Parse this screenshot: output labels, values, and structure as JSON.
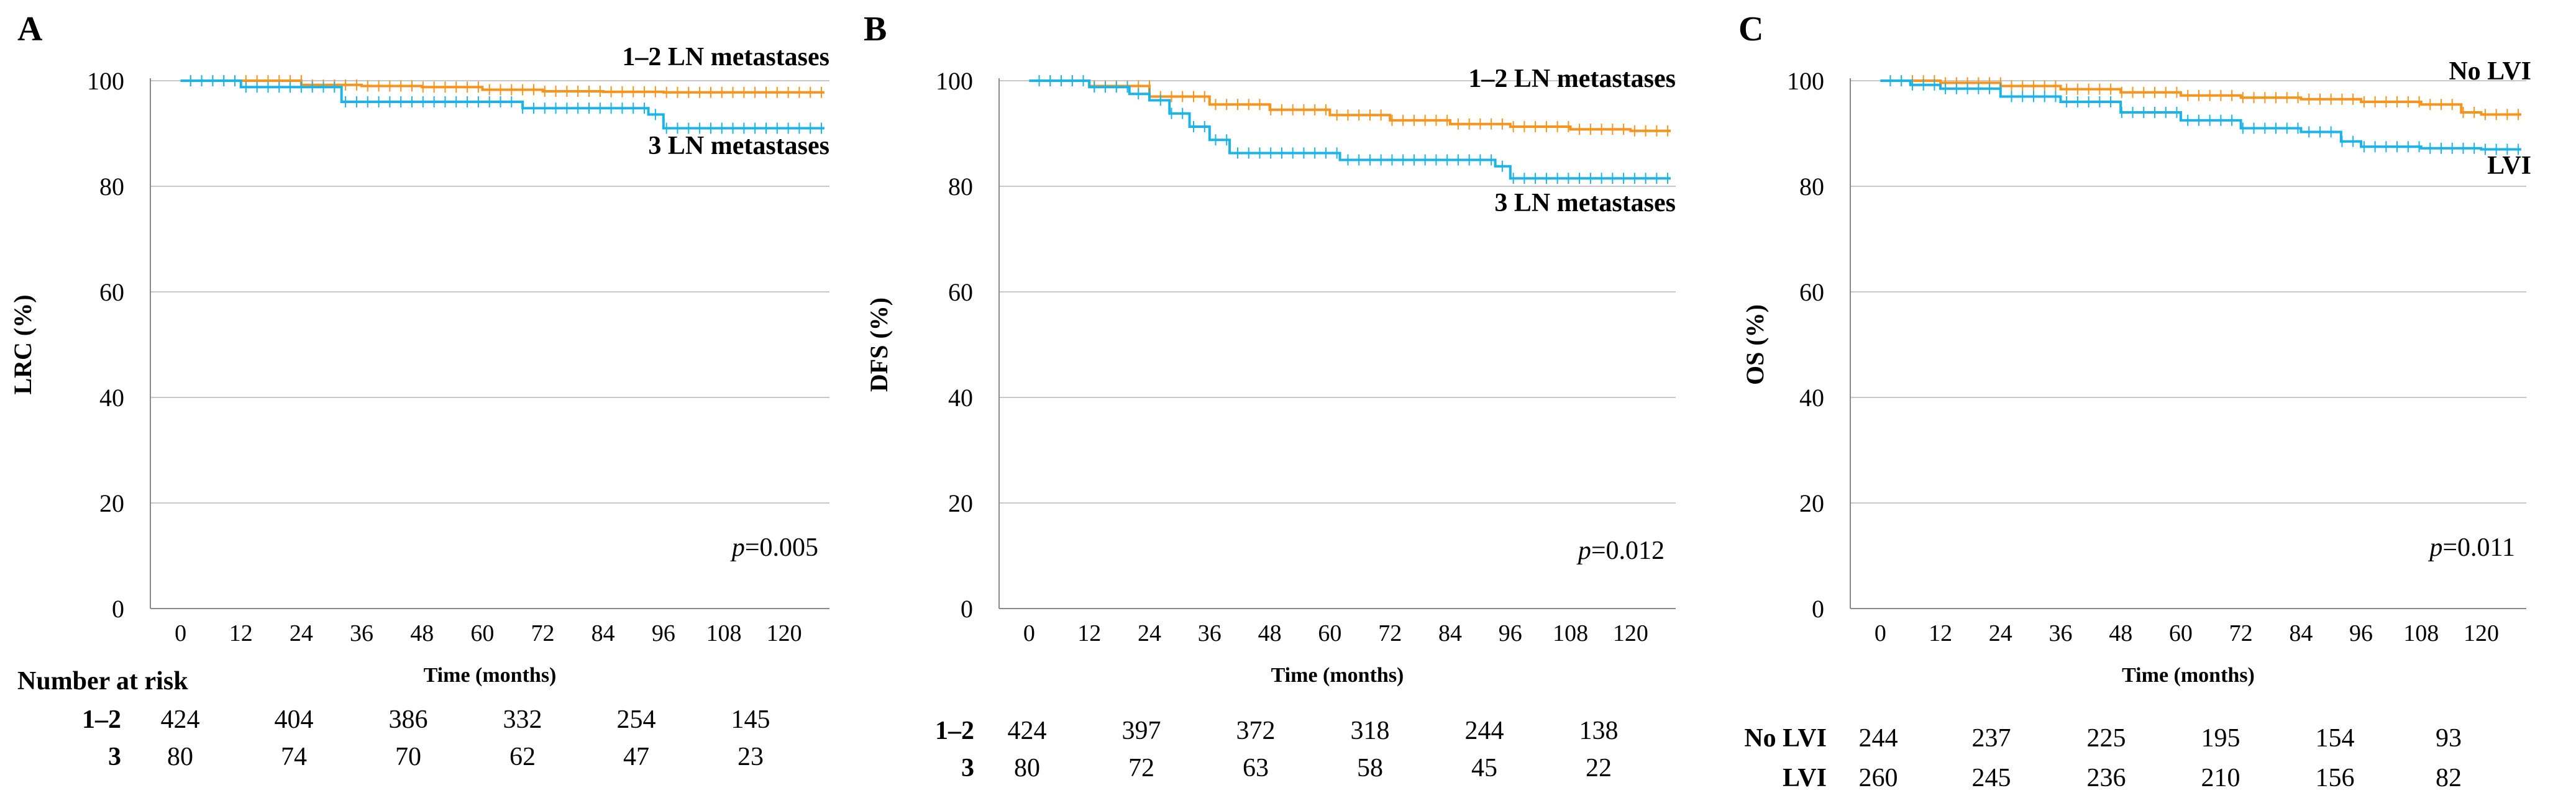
{
  "colors": {
    "series1": "#F7941D",
    "series2": "#1CB4E6",
    "grid": "#C8C8C8",
    "axis": "#8A8A8A"
  },
  "x_axis": {
    "label": "Time (months)",
    "ticks": [
      "0",
      "12",
      "24",
      "36",
      "48",
      "60",
      "72",
      "84",
      "96",
      "108",
      "120"
    ]
  },
  "y_ticks": [
    "0",
    "20",
    "40",
    "60",
    "80",
    "100"
  ],
  "risk_table_title": "Number at risk",
  "chart_data": [
    {
      "type": "line",
      "panel": "A",
      "ylabel": "LRC (%)",
      "xlabel": "Time (months)",
      "xlim": [
        -6,
        129
      ],
      "ylim": [
        0,
        100
      ],
      "p_prefix": "p",
      "p_value": "=0.005",
      "series": [
        {
          "name": "1–2 LN metastases",
          "color": "#F7941D",
          "x": [
            0,
            12,
            24,
            36,
            48,
            60,
            72,
            84,
            96,
            108,
            120,
            128
          ],
          "y": [
            100,
            100,
            99.2,
            99,
            98.8,
            98.3,
            98,
            97.9,
            97.8,
            97.8,
            97.8,
            97.8
          ]
        },
        {
          "name": "3 LN metastases",
          "color": "#1CB4E6",
          "x": [
            0,
            12,
            24,
            32,
            48,
            68,
            84,
            93,
            96,
            120,
            128
          ],
          "y": [
            100,
            98.8,
            98.8,
            96,
            96,
            94.8,
            94.8,
            93.6,
            91,
            91,
            91
          ]
        }
      ],
      "risk_table": [
        {
          "label": "1–2",
          "values": [
            "424",
            "404",
            "386",
            "332",
            "254",
            "145"
          ]
        },
        {
          "label": "3",
          "values": [
            "80",
            "74",
            "70",
            "62",
            "47",
            "23"
          ]
        }
      ]
    },
    {
      "type": "line",
      "panel": "B",
      "ylabel": "DFS (%)",
      "xlabel": "Time (months)",
      "xlim": [
        -6,
        129
      ],
      "ylim": [
        0,
        100
      ],
      "p_prefix": "p",
      "p_value": "=0.012",
      "series": [
        {
          "name": "1–2 LN metastases",
          "color": "#F7941D",
          "x": [
            0,
            12,
            24,
            36,
            48,
            60,
            72,
            84,
            96,
            108,
            120,
            128
          ],
          "y": [
            100,
            99,
            97,
            95.5,
            94.5,
            93.5,
            92.5,
            91.8,
            91.3,
            90.8,
            90.5,
            90.5
          ]
        },
        {
          "name": "3 LN metastases",
          "color": "#1CB4E6",
          "x": [
            0,
            12,
            20,
            24,
            28,
            32,
            36,
            40,
            48,
            62,
            72,
            84,
            93,
            96,
            120,
            128
          ],
          "y": [
            100,
            98.8,
            97.5,
            96.3,
            93.8,
            91.3,
            88.8,
            86.3,
            86.3,
            85,
            85,
            85,
            83.8,
            81.5,
            81.5,
            81.5
          ]
        }
      ],
      "risk_table": [
        {
          "label": "1–2",
          "values": [
            "424",
            "397",
            "372",
            "318",
            "244",
            "138"
          ]
        },
        {
          "label": "3",
          "values": [
            "80",
            "72",
            "63",
            "58",
            "45",
            "22"
          ]
        }
      ]
    },
    {
      "type": "line",
      "panel": "C",
      "ylabel": "OS (%)",
      "xlabel": "Time (months)",
      "xlim": [
        -6,
        129
      ],
      "ylim": [
        0,
        100
      ],
      "p_prefix": "p",
      "p_value": "=0.011",
      "series": [
        {
          "name": "No LVI",
          "color": "#F7941D",
          "x": [
            0,
            12,
            24,
            36,
            48,
            60,
            72,
            84,
            96,
            108,
            116,
            120,
            128
          ],
          "y": [
            100,
            99.6,
            99,
            98.4,
            97.8,
            97.2,
            96.8,
            96.5,
            96,
            95.5,
            94,
            93.6,
            93.6
          ]
        },
        {
          "name": "LVI",
          "color": "#1CB4E6",
          "x": [
            0,
            6,
            12,
            24,
            36,
            48,
            60,
            72,
            84,
            92,
            96,
            108,
            120,
            128
          ],
          "y": [
            100,
            99.2,
            98.5,
            97,
            96,
            94,
            92.5,
            91,
            90.3,
            88.5,
            87.5,
            87.2,
            87,
            87
          ]
        }
      ],
      "risk_table": [
        {
          "label": "No LVI",
          "values": [
            "244",
            "237",
            "225",
            "195",
            "154",
            "93"
          ]
        },
        {
          "label": "LVI",
          "values": [
            "260",
            "245",
            "236",
            "210",
            "156",
            "82"
          ]
        }
      ]
    }
  ]
}
